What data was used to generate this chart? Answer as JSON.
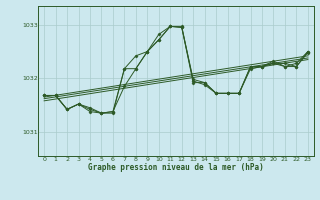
{
  "title": "Graphe pression niveau de la mer (hPa)",
  "bg_color": "#cce8ee",
  "grid_color": "#aacccc",
  "line_color": "#2d5a27",
  "x_ticks": [
    0,
    1,
    2,
    3,
    4,
    5,
    6,
    7,
    8,
    9,
    10,
    11,
    12,
    13,
    14,
    15,
    16,
    17,
    18,
    19,
    20,
    21,
    22,
    23
  ],
  "y_ticks": [
    1031,
    1032,
    1033
  ],
  "ylim": [
    1030.55,
    1033.35
  ],
  "xlim": [
    -0.5,
    23.5
  ],
  "series1": [
    1031.68,
    1031.68,
    1031.42,
    1031.52,
    1031.42,
    1031.35,
    1031.38,
    1031.85,
    1032.18,
    1032.5,
    1032.72,
    1032.97,
    1032.95,
    1031.92,
    1031.92,
    1031.72,
    1031.72,
    1031.72,
    1032.22,
    1032.22,
    1032.32,
    1032.22,
    1032.28,
    1032.5
  ],
  "series2": [
    1031.68,
    1031.68,
    1031.42,
    1031.52,
    1031.38,
    1031.35,
    1031.35,
    1032.18,
    1032.18,
    1032.5,
    1032.82,
    1032.97,
    1032.95,
    1031.98,
    1031.92,
    1031.72,
    1031.72,
    1031.72,
    1032.18,
    1032.22,
    1032.28,
    1032.28,
    1032.22,
    1032.48
  ],
  "main_series": [
    1031.68,
    1031.68,
    1031.42,
    1031.52,
    1031.45,
    1031.35,
    1031.38,
    1032.18,
    1032.42,
    1032.5,
    1032.72,
    1032.97,
    1032.97,
    1031.95,
    1031.88,
    1031.72,
    1031.72,
    1031.72,
    1032.22,
    1032.22,
    1032.28,
    1032.22,
    1032.22,
    1032.5
  ],
  "trend1_x": [
    0,
    23
  ],
  "trend1_y": [
    1031.62,
    1032.38
  ],
  "trend2_x": [
    0,
    23
  ],
  "trend2_y": [
    1031.65,
    1032.42
  ],
  "trend3_x": [
    0,
    23
  ],
  "trend3_y": [
    1031.58,
    1032.35
  ]
}
